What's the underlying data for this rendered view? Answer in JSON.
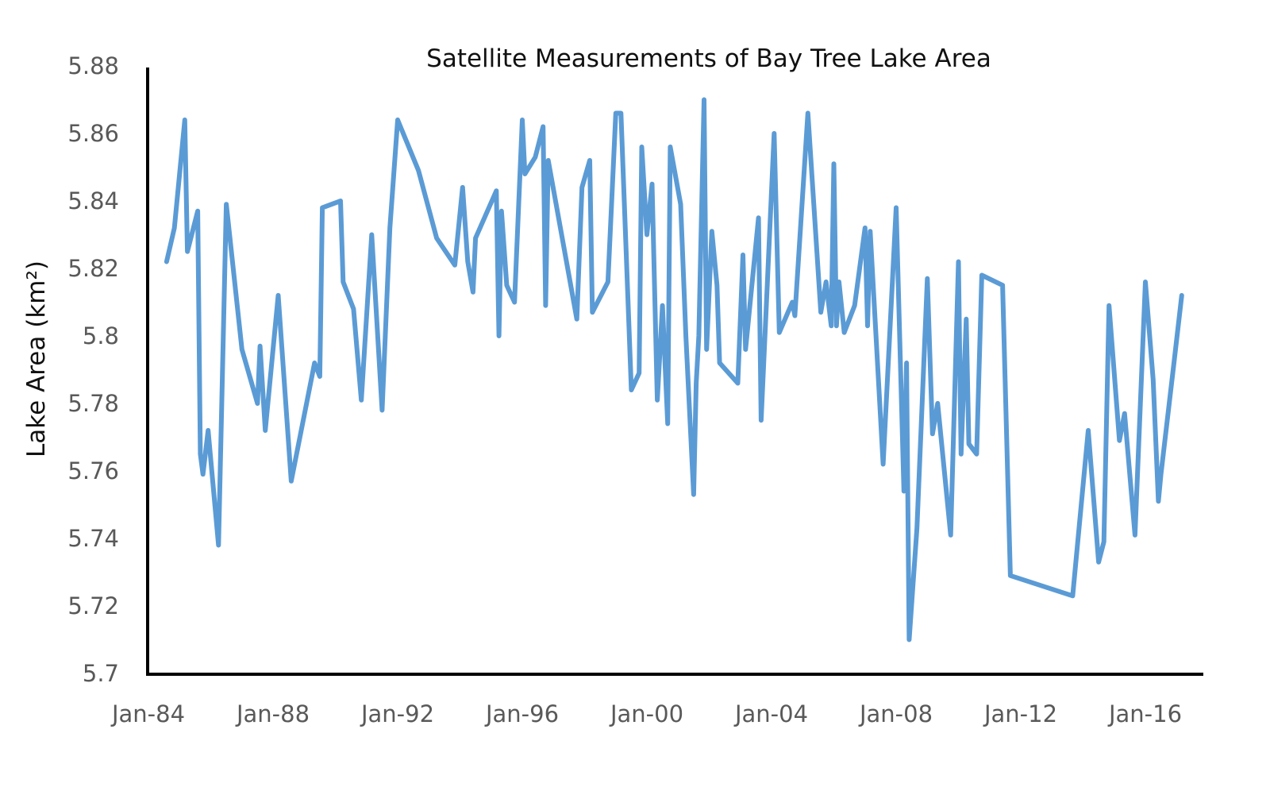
{
  "chart_data": {
    "type": "line",
    "title": "Satellite Measurements of Bay Tree Lake Area",
    "xlabel": "",
    "ylabel": "Lake Area (km²)",
    "ylim": [
      5.7,
      5.88
    ],
    "xlim": [
      "1984-01",
      "2017-10"
    ],
    "grid": false,
    "legend": "none",
    "yticks": [
      "5.7",
      "5.72",
      "5.74",
      "5.76",
      "5.78",
      "5.8",
      "5.82",
      "5.84",
      "5.86",
      "5.88"
    ],
    "xticks": [
      {
        "date": "1984-01",
        "label": "Jan-84"
      },
      {
        "date": "1988-01",
        "label": "Jan-88"
      },
      {
        "date": "1992-01",
        "label": "Jan-92"
      },
      {
        "date": "1996-01",
        "label": "Jan-96"
      },
      {
        "date": "2000-01",
        "label": "Jan-00"
      },
      {
        "date": "2004-01",
        "label": "Jan-04"
      },
      {
        "date": "2008-01",
        "label": "Jan-08"
      },
      {
        "date": "2012-01",
        "label": "Jan-12"
      },
      {
        "date": "2016-01",
        "label": "Jan-16"
      }
    ],
    "series": [
      {
        "color": "#5b9bd5",
        "points": [
          [
            "1984-08",
            5.822
          ],
          [
            "1984-11",
            5.832
          ],
          [
            "1985-03",
            5.864
          ],
          [
            "1985-04",
            5.825
          ],
          [
            "1985-08",
            5.837
          ],
          [
            "1985-09",
            5.765
          ],
          [
            "1985-10",
            5.759
          ],
          [
            "1985-12",
            5.772
          ],
          [
            "1986-04",
            5.738
          ],
          [
            "1986-07",
            5.839
          ],
          [
            "1987-01",
            5.796
          ],
          [
            "1987-07",
            5.78
          ],
          [
            "1987-08",
            5.797
          ],
          [
            "1987-10",
            5.772
          ],
          [
            "1988-03",
            5.812
          ],
          [
            "1988-08",
            5.757
          ],
          [
            "1989-05",
            5.792
          ],
          [
            "1989-07",
            5.788
          ],
          [
            "1989-08",
            5.838
          ],
          [
            "1990-03",
            5.84
          ],
          [
            "1990-04",
            5.816
          ],
          [
            "1990-08",
            5.808
          ],
          [
            "1990-11",
            5.781
          ],
          [
            "1991-03",
            5.83
          ],
          [
            "1991-07",
            5.778
          ],
          [
            "1991-10",
            5.832
          ],
          [
            "1992-01",
            5.864
          ],
          [
            "1992-09",
            5.849
          ],
          [
            "1993-04",
            5.829
          ],
          [
            "1993-11",
            5.821
          ],
          [
            "1994-02",
            5.844
          ],
          [
            "1994-04",
            5.822
          ],
          [
            "1994-06",
            5.813
          ],
          [
            "1994-07",
            5.829
          ],
          [
            "1995-03",
            5.843
          ],
          [
            "1995-04",
            5.8
          ],
          [
            "1995-05",
            5.837
          ],
          [
            "1995-07",
            5.815
          ],
          [
            "1995-10",
            5.81
          ],
          [
            "1996-01",
            5.864
          ],
          [
            "1996-02",
            5.848
          ],
          [
            "1996-06",
            5.853
          ],
          [
            "1996-09",
            5.862
          ],
          [
            "1996-10",
            5.809
          ],
          [
            "1996-11",
            5.852
          ],
          [
            "1997-10",
            5.805
          ],
          [
            "1997-12",
            5.844
          ],
          [
            "1998-03",
            5.852
          ],
          [
            "1998-04",
            5.807
          ],
          [
            "1998-10",
            5.816
          ],
          [
            "1999-01",
            5.866
          ],
          [
            "1999-03",
            5.866
          ],
          [
            "1999-07",
            5.784
          ],
          [
            "1999-10",
            5.789
          ],
          [
            "1999-11",
            5.856
          ],
          [
            "2000-01",
            5.83
          ],
          [
            "2000-03",
            5.845
          ],
          [
            "2000-05",
            5.781
          ],
          [
            "2000-07",
            5.809
          ],
          [
            "2000-09",
            5.774
          ],
          [
            "2000-10",
            5.856
          ],
          [
            "2001-02",
            5.839
          ],
          [
            "2001-04",
            5.8
          ],
          [
            "2001-07",
            5.753
          ],
          [
            "2001-08",
            5.786
          ],
          [
            "2001-09",
            5.8
          ],
          [
            "2001-11",
            5.87
          ],
          [
            "2001-12",
            5.796
          ],
          [
            "2002-02",
            5.831
          ],
          [
            "2002-04",
            5.815
          ],
          [
            "2002-05",
            5.792
          ],
          [
            "2002-12",
            5.786
          ],
          [
            "2003-02",
            5.824
          ],
          [
            "2003-03",
            5.796
          ],
          [
            "2003-08",
            5.835
          ],
          [
            "2003-09",
            5.775
          ],
          [
            "2004-02",
            5.86
          ],
          [
            "2004-04",
            5.801
          ],
          [
            "2004-09",
            5.81
          ],
          [
            "2004-10",
            5.806
          ],
          [
            "2005-03",
            5.866
          ],
          [
            "2005-08",
            5.807
          ],
          [
            "2005-10",
            5.816
          ],
          [
            "2005-12",
            5.803
          ],
          [
            "2006-01",
            5.851
          ],
          [
            "2006-02",
            5.803
          ],
          [
            "2006-03",
            5.816
          ],
          [
            "2006-05",
            5.801
          ],
          [
            "2006-09",
            5.809
          ],
          [
            "2007-01",
            5.832
          ],
          [
            "2007-02",
            5.803
          ],
          [
            "2007-03",
            5.831
          ],
          [
            "2007-08",
            5.762
          ],
          [
            "2008-01",
            5.838
          ],
          [
            "2008-04",
            5.754
          ],
          [
            "2008-05",
            5.792
          ],
          [
            "2008-06",
            5.71
          ],
          [
            "2008-09",
            5.743
          ],
          [
            "2009-01",
            5.817
          ],
          [
            "2009-03",
            5.771
          ],
          [
            "2009-05",
            5.78
          ],
          [
            "2009-10",
            5.741
          ],
          [
            "2010-01",
            5.822
          ],
          [
            "2010-02",
            5.765
          ],
          [
            "2010-04",
            5.805
          ],
          [
            "2010-05",
            5.768
          ],
          [
            "2010-08",
            5.765
          ],
          [
            "2010-10",
            5.818
          ],
          [
            "2011-06",
            5.815
          ],
          [
            "2011-09",
            5.729
          ],
          [
            "2013-09",
            5.723
          ],
          [
            "2014-03",
            5.772
          ],
          [
            "2014-07",
            5.733
          ],
          [
            "2014-09",
            5.739
          ],
          [
            "2014-11",
            5.809
          ],
          [
            "2015-03",
            5.769
          ],
          [
            "2015-05",
            5.777
          ],
          [
            "2015-09",
            5.741
          ],
          [
            "2016-01",
            5.816
          ],
          [
            "2016-04",
            5.787
          ],
          [
            "2016-06",
            5.751
          ],
          [
            "2016-07",
            5.759
          ],
          [
            "2016-12",
            5.792
          ],
          [
            "2017-03",
            5.812
          ]
        ]
      }
    ]
  }
}
